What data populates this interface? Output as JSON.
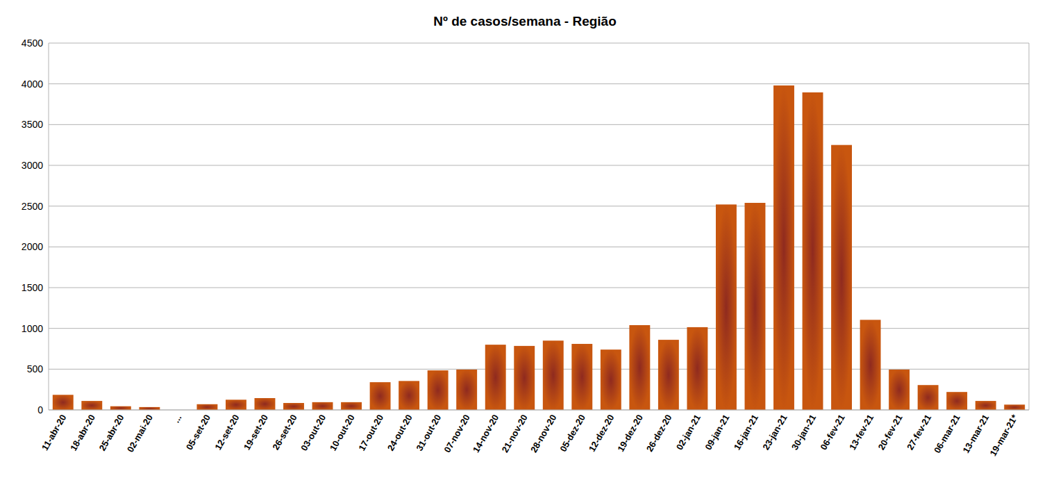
{
  "chart_data": {
    "type": "bar",
    "title": "Nº de casos/semana - Região",
    "categories": [
      "11-abr-20",
      "18-abr-20",
      "25-abr-20",
      "02-mai-20",
      "...",
      "05-set-20",
      "12-set-20",
      "19-set-20",
      "26-set-20",
      "03-out-20",
      "10-out-20",
      "17-out-20",
      "24-out-20",
      "31-out-20",
      "07-nov-20",
      "14-nov-20",
      "21-nov-20",
      "28-nov-20",
      "05-dez-20",
      "12-dez-20",
      "19-dez-20",
      "26-dez-20",
      "02-jan-21",
      "09-jan-21",
      "16-jan-21",
      "23-jan-21",
      "30-jan-21",
      "06-fev-21",
      "13-fev-21",
      "20-fev-21",
      "27-fev-21",
      "06-mar-21",
      "13-mar-21",
      "19-mar-21*"
    ],
    "values": [
      185,
      110,
      45,
      35,
      null,
      70,
      125,
      145,
      85,
      95,
      95,
      340,
      355,
      485,
      495,
      800,
      785,
      850,
      810,
      740,
      1040,
      860,
      1015,
      2520,
      2540,
      3980,
      3895,
      3250,
      1105,
      495,
      305,
      220,
      110,
      65
    ],
    "color": "#c8560f",
    "ylim": [
      0,
      4500
    ],
    "yticks": [
      0,
      500,
      1000,
      1500,
      2000,
      2500,
      3000,
      3500,
      4000,
      4500
    ],
    "grid": true
  }
}
